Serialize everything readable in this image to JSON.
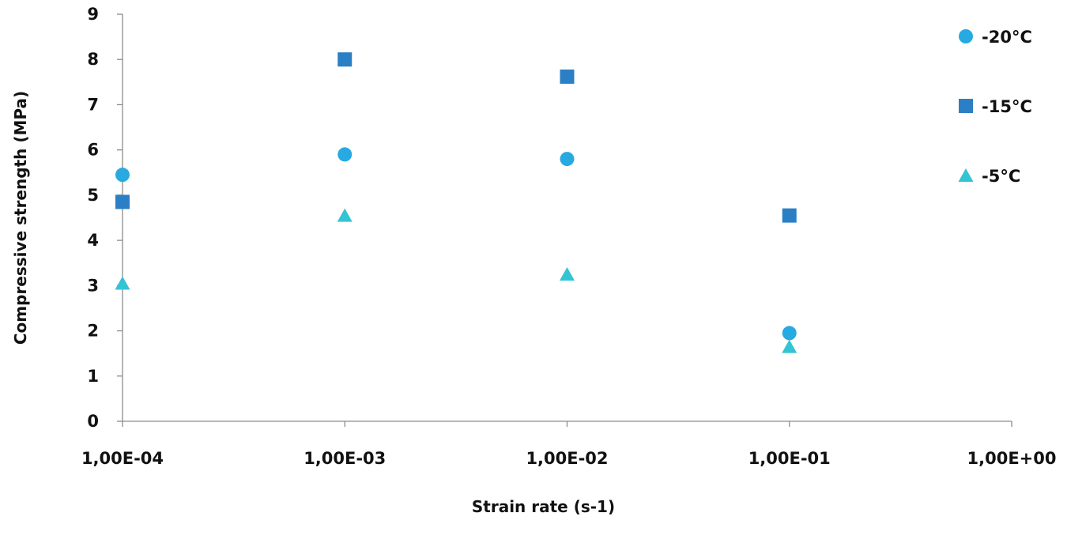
{
  "chart_data": {
    "type": "scatter",
    "title": "",
    "xlabel": "Strain rate (s-1)",
    "ylabel": "Compressive strength (MPa)",
    "xscale": "log",
    "xlim": [
      0.0001,
      1
    ],
    "ylim": [
      0,
      9
    ],
    "x_tick_values": [
      0.0001,
      0.001,
      0.01,
      0.1,
      1
    ],
    "x_tick_labels": [
      "1,00E-04",
      "1,00E-03",
      "1,00E-02",
      "1,00E-01",
      "1,00E+00"
    ],
    "y_ticks": [
      0,
      1,
      2,
      3,
      4,
      5,
      6,
      7,
      8,
      9
    ],
    "grid": false,
    "legend_position": "right",
    "series": [
      {
        "name": "-20°C",
        "marker": "circle",
        "color": "#27a9e1",
        "x": [
          0.0001,
          0.001,
          0.01,
          0.1
        ],
        "y": [
          5.45,
          5.9,
          5.8,
          1.95
        ]
      },
      {
        "name": "-15°C",
        "marker": "square",
        "color": "#2b7fc4",
        "x": [
          0.0001,
          0.001,
          0.01,
          0.1
        ],
        "y": [
          4.85,
          8.0,
          7.62,
          4.55
        ]
      },
      {
        "name": "-5°C",
        "marker": "triangle",
        "color": "#33c4d4",
        "x": [
          0.0001,
          0.001,
          0.01,
          0.1
        ],
        "y": [
          3.05,
          4.55,
          3.25,
          1.65
        ]
      }
    ]
  }
}
